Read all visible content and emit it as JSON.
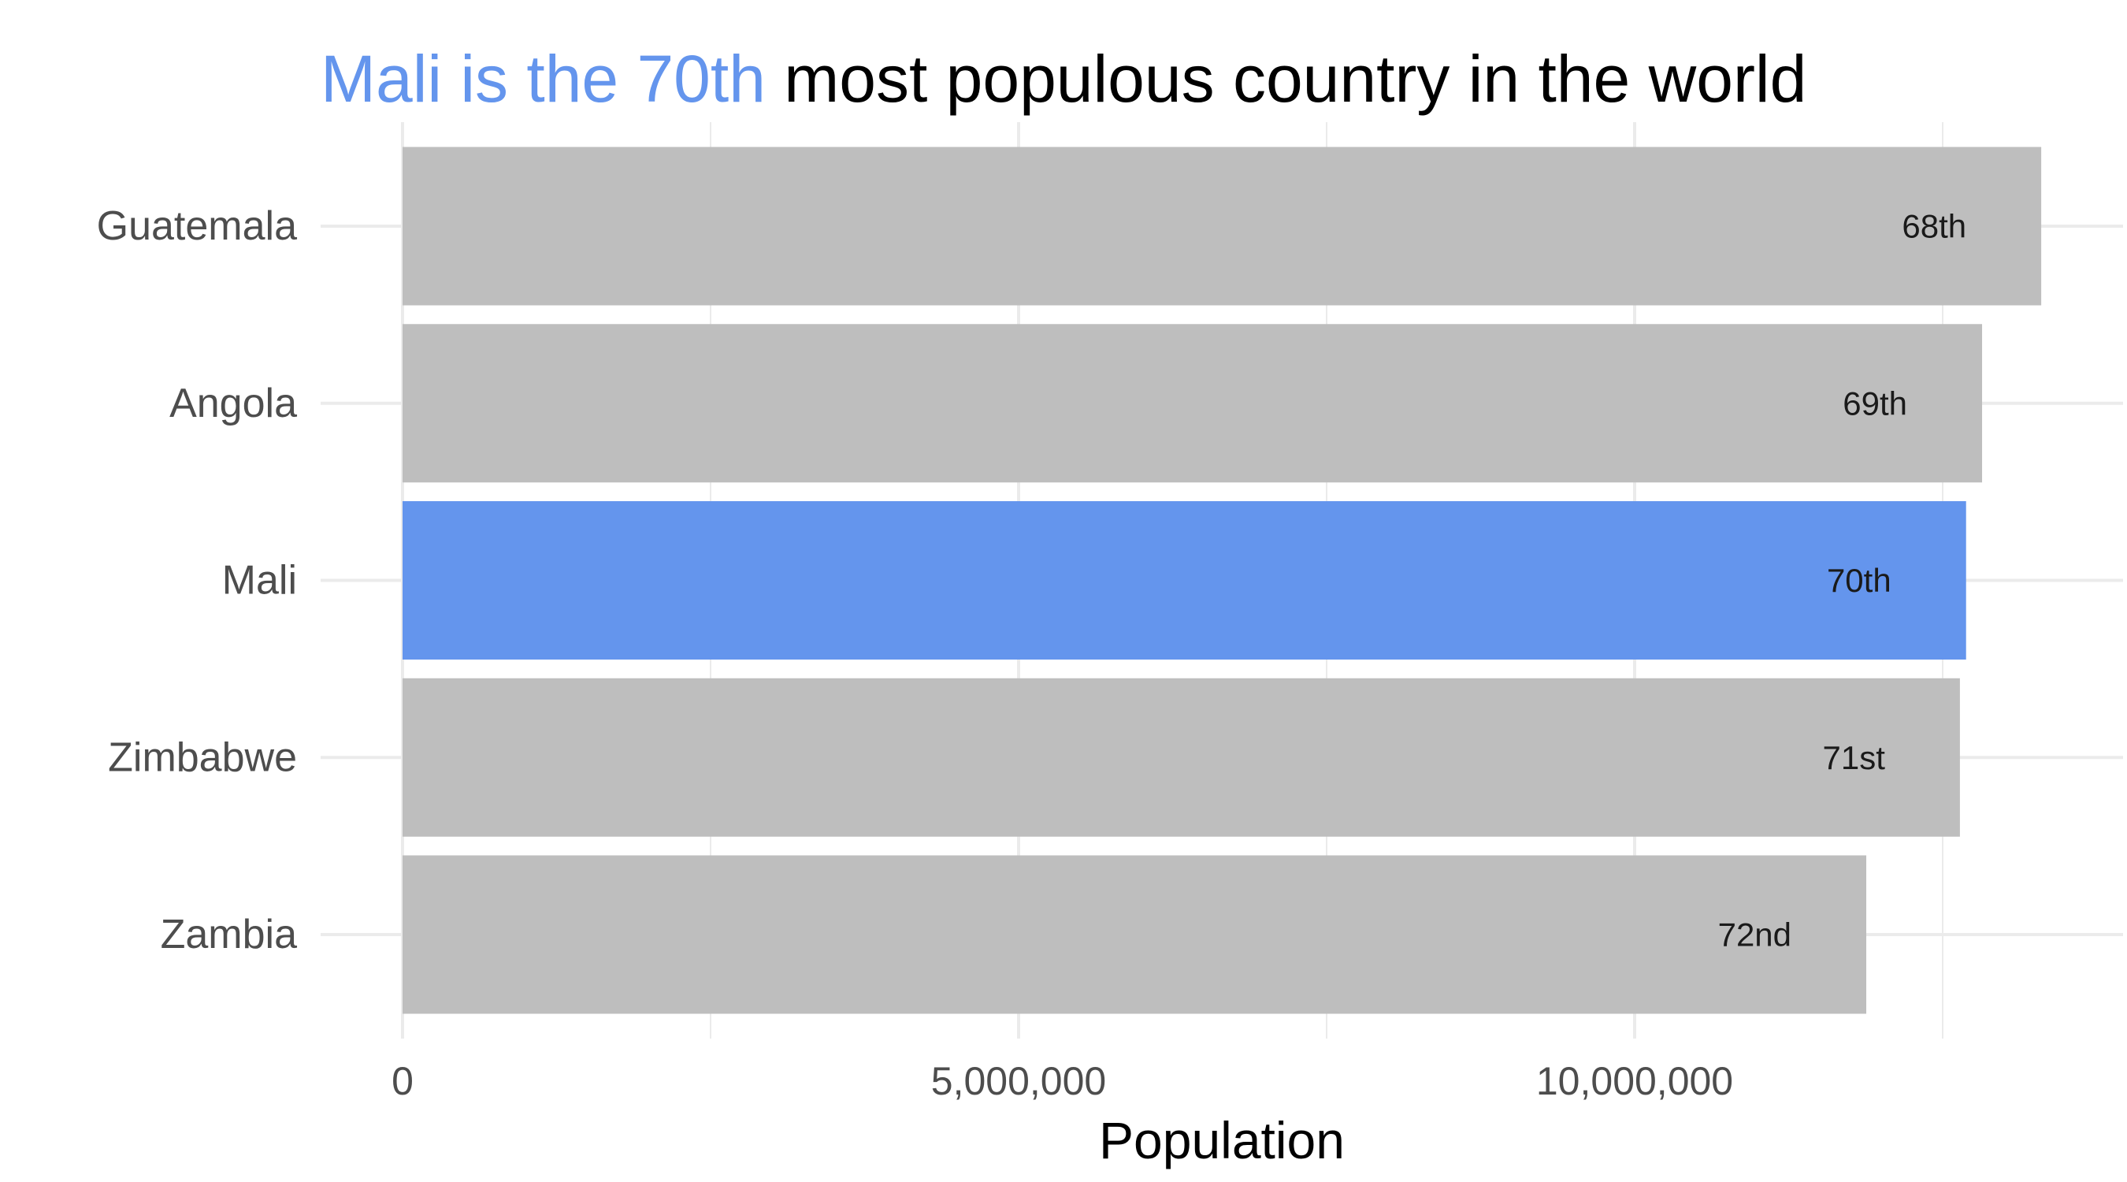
{
  "chart_data": {
    "type": "bar",
    "orientation": "horizontal",
    "title": {
      "highlight": "Mali is the 70th",
      "rest": " most populous country in the world"
    },
    "categories": [
      "Guatemala",
      "Angola",
      "Mali",
      "Zimbabwe",
      "Zambia"
    ],
    "values": [
      13300000,
      12820000,
      12690000,
      12640000,
      11880000
    ],
    "rank_labels": [
      "68th",
      "69th",
      "70th",
      "71st",
      "72nd"
    ],
    "highlight_category": "Mali",
    "xlabel": "Population",
    "ylabel": "",
    "xlim": [
      0,
      14000000
    ],
    "x_ticks": [
      0,
      5000000,
      10000000
    ],
    "x_tick_labels": [
      "0",
      "5,000,000",
      "10,000,000"
    ],
    "x_minor_ticks": [
      2500000,
      7500000,
      12500000
    ],
    "grid": true,
    "legend": "none",
    "colors": {
      "highlight": "#6495ED",
      "bar": "#BEBEBE",
      "grid": "#EBEBEB",
      "axis_text": "#4D4D4D",
      "title": "#000000",
      "label": "#1A1A1A"
    }
  }
}
